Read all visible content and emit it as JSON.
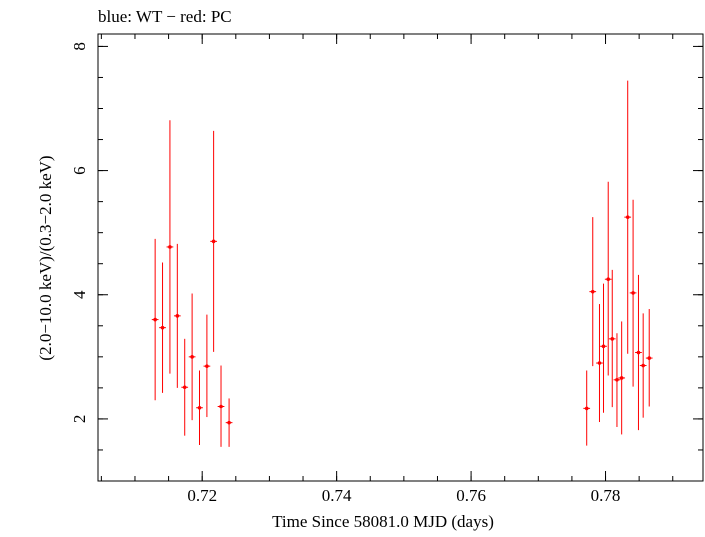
{
  "chart_data": {
    "type": "scatter",
    "title": "blue: WT − red: PC",
    "xlabel": "Time Since 58081.0 MJD (days)",
    "ylabel": "(2.0−10.0 keV)/(0.3−2.0 keV)",
    "xlim": [
      0.7045,
      0.7945
    ],
    "ylim": [
      1.0,
      8.2
    ],
    "x_ticks": [
      {
        "value": 0.72,
        "label": "0.72"
      },
      {
        "value": 0.74,
        "label": "0.74"
      },
      {
        "value": 0.76,
        "label": "0.76"
      },
      {
        "value": 0.78,
        "label": "0.78"
      }
    ],
    "y_ticks": [
      {
        "value": 2,
        "label": "2"
      },
      {
        "value": 4,
        "label": "4"
      },
      {
        "value": 6,
        "label": "6"
      },
      {
        "value": 8,
        "label": "8"
      }
    ],
    "series": [
      {
        "name": "PC",
        "color": "#ff0000",
        "points": [
          {
            "x": 0.713,
            "y": 3.6,
            "ylo": 2.3,
            "yhi": 4.9,
            "xerr": 0.0005
          },
          {
            "x": 0.7141,
            "y": 3.47,
            "ylo": 2.42,
            "yhi": 4.52,
            "xerr": 0.0005
          },
          {
            "x": 0.7152,
            "y": 4.77,
            "ylo": 2.73,
            "yhi": 6.81,
            "xerr": 0.0005
          },
          {
            "x": 0.7163,
            "y": 3.66,
            "ylo": 2.5,
            "yhi": 4.82,
            "xerr": 0.0005
          },
          {
            "x": 0.7174,
            "y": 2.51,
            "ylo": 1.73,
            "yhi": 3.29,
            "xerr": 0.0005
          },
          {
            "x": 0.7185,
            "y": 3.0,
            "ylo": 1.98,
            "yhi": 4.02,
            "xerr": 0.0005
          },
          {
            "x": 0.7196,
            "y": 2.18,
            "ylo": 1.58,
            "yhi": 2.78,
            "xerr": 0.0005
          },
          {
            "x": 0.7207,
            "y": 2.85,
            "ylo": 2.03,
            "yhi": 3.68,
            "xerr": 0.0005
          },
          {
            "x": 0.7217,
            "y": 4.86,
            "ylo": 3.08,
            "yhi": 6.64,
            "xerr": 0.0005
          },
          {
            "x": 0.7228,
            "y": 2.2,
            "ylo": 1.55,
            "yhi": 2.86,
            "xerr": 0.0005
          },
          {
            "x": 0.724,
            "y": 1.94,
            "ylo": 1.55,
            "yhi": 2.33,
            "xerr": 0.0005
          },
          {
            "x": 0.7772,
            "y": 2.17,
            "ylo": 1.57,
            "yhi": 2.78,
            "xerr": 0.0005
          },
          {
            "x": 0.7781,
            "y": 4.05,
            "ylo": 2.85,
            "yhi": 5.25,
            "xerr": 0.0005
          },
          {
            "x": 0.7791,
            "y": 2.9,
            "ylo": 1.95,
            "yhi": 3.85,
            "xerr": 0.0005
          },
          {
            "x": 0.7797,
            "y": 3.17,
            "ylo": 2.1,
            "yhi": 4.18,
            "xerr": 0.0005
          },
          {
            "x": 0.7804,
            "y": 4.25,
            "ylo": 2.7,
            "yhi": 5.82,
            "xerr": 0.0005
          },
          {
            "x": 0.781,
            "y": 3.29,
            "ylo": 2.19,
            "yhi": 4.4,
            "xerr": 0.0005
          },
          {
            "x": 0.7817,
            "y": 2.63,
            "ylo": 1.87,
            "yhi": 3.38,
            "xerr": 0.0005
          },
          {
            "x": 0.7824,
            "y": 2.66,
            "ylo": 1.75,
            "yhi": 3.57,
            "xerr": 0.0005
          },
          {
            "x": 0.7833,
            "y": 5.25,
            "ylo": 3.05,
            "yhi": 7.45,
            "xerr": 0.0005
          },
          {
            "x": 0.7841,
            "y": 4.03,
            "ylo": 2.52,
            "yhi": 5.53,
            "xerr": 0.0005
          },
          {
            "x": 0.7849,
            "y": 3.07,
            "ylo": 1.82,
            "yhi": 4.32,
            "xerr": 0.0005
          },
          {
            "x": 0.7856,
            "y": 2.86,
            "ylo": 2.02,
            "yhi": 3.7,
            "xerr": 0.0005
          },
          {
            "x": 0.7865,
            "y": 2.98,
            "ylo": 2.2,
            "yhi": 3.77,
            "xerr": 0.0005
          }
        ]
      }
    ],
    "grid": false,
    "legend": "none"
  }
}
